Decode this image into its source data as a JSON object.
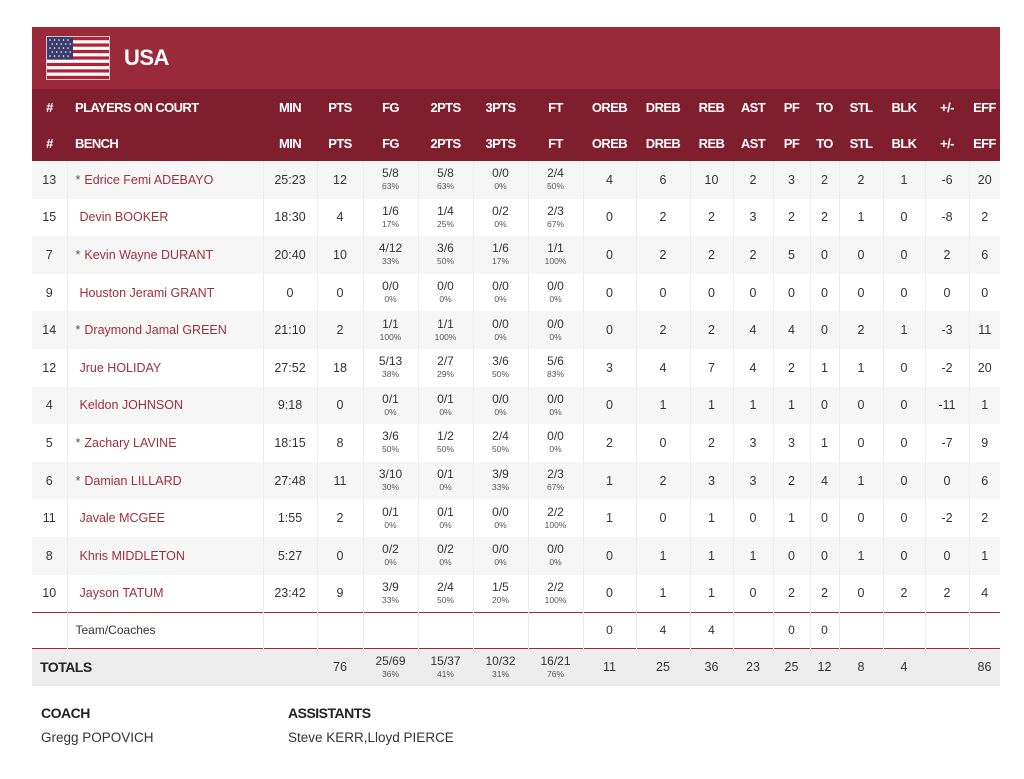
{
  "team": {
    "name": "USA"
  },
  "header_row1": {
    "num": "#",
    "players": "PLAYERS ON COURT",
    "min": "MIN",
    "pts": "PTS",
    "fg": "FG",
    "p2": "2PTS",
    "p3": "3PTS",
    "ft": "FT",
    "oreb": "OREB",
    "dreb": "DREB",
    "reb": "REB",
    "ast": "AST",
    "pf": "PF",
    "to": "TO",
    "stl": "STL",
    "blk": "BLK",
    "pm": "+/-",
    "eff": "EFF"
  },
  "header_row2": {
    "num": "#",
    "players": "BENCH",
    "min": "MIN",
    "pts": "PTS",
    "fg": "FG",
    "p2": "2PTS",
    "p3": "3PTS",
    "ft": "FT",
    "oreb": "OREB",
    "dreb": "DREB",
    "reb": "REB",
    "ast": "AST",
    "pf": "PF",
    "to": "TO",
    "stl": "STL",
    "blk": "BLK",
    "pm": "+/-",
    "eff": "EFF"
  },
  "players": [
    {
      "num": "13",
      "star": "*",
      "name": "Edrice Femi ADEBAYO",
      "min": "25:23",
      "pts": "12",
      "fg": "5/8",
      "fg_pct": "63%",
      "p2": "5/8",
      "p2_pct": "63%",
      "p3": "0/0",
      "p3_pct": "0%",
      "ft": "2/4",
      "ft_pct": "50%",
      "oreb": "4",
      "dreb": "6",
      "reb": "10",
      "ast": "2",
      "pf": "3",
      "to": "2",
      "stl": "2",
      "blk": "1",
      "pm": "-6",
      "eff": "20"
    },
    {
      "num": "15",
      "star": "",
      "name": "Devin BOOKER",
      "min": "18:30",
      "pts": "4",
      "fg": "1/6",
      "fg_pct": "17%",
      "p2": "1/4",
      "p2_pct": "25%",
      "p3": "0/2",
      "p3_pct": "0%",
      "ft": "2/3",
      "ft_pct": "67%",
      "oreb": "0",
      "dreb": "2",
      "reb": "2",
      "ast": "3",
      "pf": "2",
      "to": "2",
      "stl": "1",
      "blk": "0",
      "pm": "-8",
      "eff": "2"
    },
    {
      "num": "7",
      "star": "*",
      "name": "Kevin Wayne DURANT",
      "min": "20:40",
      "pts": "10",
      "fg": "4/12",
      "fg_pct": "33%",
      "p2": "3/6",
      "p2_pct": "50%",
      "p3": "1/6",
      "p3_pct": "17%",
      "ft": "1/1",
      "ft_pct": "100%",
      "oreb": "0",
      "dreb": "2",
      "reb": "2",
      "ast": "2",
      "pf": "5",
      "to": "0",
      "stl": "0",
      "blk": "0",
      "pm": "2",
      "eff": "6"
    },
    {
      "num": "9",
      "star": "",
      "name": "Houston Jerami GRANT",
      "min": "0",
      "pts": "0",
      "fg": "0/0",
      "fg_pct": "0%",
      "p2": "0/0",
      "p2_pct": "0%",
      "p3": "0/0",
      "p3_pct": "0%",
      "ft": "0/0",
      "ft_pct": "0%",
      "oreb": "0",
      "dreb": "0",
      "reb": "0",
      "ast": "0",
      "pf": "0",
      "to": "0",
      "stl": "0",
      "blk": "0",
      "pm": "0",
      "eff": "0"
    },
    {
      "num": "14",
      "star": "*",
      "name": "Draymond Jamal GREEN",
      "min": "21:10",
      "pts": "2",
      "fg": "1/1",
      "fg_pct": "100%",
      "p2": "1/1",
      "p2_pct": "100%",
      "p3": "0/0",
      "p3_pct": "0%",
      "ft": "0/0",
      "ft_pct": "0%",
      "oreb": "0",
      "dreb": "2",
      "reb": "2",
      "ast": "4",
      "pf": "4",
      "to": "0",
      "stl": "2",
      "blk": "1",
      "pm": "-3",
      "eff": "11"
    },
    {
      "num": "12",
      "star": "",
      "name": "Jrue HOLIDAY",
      "min": "27:52",
      "pts": "18",
      "fg": "5/13",
      "fg_pct": "38%",
      "p2": "2/7",
      "p2_pct": "29%",
      "p3": "3/6",
      "p3_pct": "50%",
      "ft": "5/6",
      "ft_pct": "83%",
      "oreb": "3",
      "dreb": "4",
      "reb": "7",
      "ast": "4",
      "pf": "2",
      "to": "1",
      "stl": "1",
      "blk": "0",
      "pm": "-2",
      "eff": "20"
    },
    {
      "num": "4",
      "star": "",
      "name": "Keldon JOHNSON",
      "min": "9:18",
      "pts": "0",
      "fg": "0/1",
      "fg_pct": "0%",
      "p2": "0/1",
      "p2_pct": "0%",
      "p3": "0/0",
      "p3_pct": "0%",
      "ft": "0/0",
      "ft_pct": "0%",
      "oreb": "0",
      "dreb": "1",
      "reb": "1",
      "ast": "1",
      "pf": "1",
      "to": "0",
      "stl": "0",
      "blk": "0",
      "pm": "-11",
      "eff": "1"
    },
    {
      "num": "5",
      "star": "*",
      "name": "Zachary LAVINE",
      "min": "18:15",
      "pts": "8",
      "fg": "3/6",
      "fg_pct": "50%",
      "p2": "1/2",
      "p2_pct": "50%",
      "p3": "2/4",
      "p3_pct": "50%",
      "ft": "0/0",
      "ft_pct": "0%",
      "oreb": "2",
      "dreb": "0",
      "reb": "2",
      "ast": "3",
      "pf": "3",
      "to": "1",
      "stl": "0",
      "blk": "0",
      "pm": "-7",
      "eff": "9"
    },
    {
      "num": "6",
      "star": "*",
      "name": "Damian LILLARD",
      "min": "27:48",
      "pts": "11",
      "fg": "3/10",
      "fg_pct": "30%",
      "p2": "0/1",
      "p2_pct": "0%",
      "p3": "3/9",
      "p3_pct": "33%",
      "ft": "2/3",
      "ft_pct": "67%",
      "oreb": "1",
      "dreb": "2",
      "reb": "3",
      "ast": "3",
      "pf": "2",
      "to": "4",
      "stl": "1",
      "blk": "0",
      "pm": "0",
      "eff": "6"
    },
    {
      "num": "11",
      "star": "",
      "name": "Javale MCGEE",
      "min": "1:55",
      "pts": "2",
      "fg": "0/1",
      "fg_pct": "0%",
      "p2": "0/1",
      "p2_pct": "0%",
      "p3": "0/0",
      "p3_pct": "0%",
      "ft": "2/2",
      "ft_pct": "100%",
      "oreb": "1",
      "dreb": "0",
      "reb": "1",
      "ast": "0",
      "pf": "1",
      "to": "0",
      "stl": "0",
      "blk": "0",
      "pm": "-2",
      "eff": "2"
    },
    {
      "num": "8",
      "star": "",
      "name": "Khris MIDDLETON",
      "min": "5:27",
      "pts": "0",
      "fg": "0/2",
      "fg_pct": "0%",
      "p2": "0/2",
      "p2_pct": "0%",
      "p3": "0/0",
      "p3_pct": "0%",
      "ft": "0/0",
      "ft_pct": "0%",
      "oreb": "0",
      "dreb": "1",
      "reb": "1",
      "ast": "1",
      "pf": "0",
      "to": "0",
      "stl": "1",
      "blk": "0",
      "pm": "0",
      "eff": "1"
    },
    {
      "num": "10",
      "star": "",
      "name": "Jayson TATUM",
      "min": "23:42",
      "pts": "9",
      "fg": "3/9",
      "fg_pct": "33%",
      "p2": "2/4",
      "p2_pct": "50%",
      "p3": "1/5",
      "p3_pct": "20%",
      "ft": "2/2",
      "ft_pct": "100%",
      "oreb": "0",
      "dreb": "1",
      "reb": "1",
      "ast": "0",
      "pf": "2",
      "to": "2",
      "stl": "0",
      "blk": "2",
      "pm": "2",
      "eff": "4"
    }
  ],
  "team_coaches": {
    "label": "Team/Coaches",
    "oreb": "0",
    "dreb": "4",
    "reb": "4",
    "ast": "",
    "pf": "0",
    "to": "0"
  },
  "totals": {
    "label": "TOTALS",
    "pts": "76",
    "fg": "25/69",
    "fg_pct": "36%",
    "p2": "15/37",
    "p2_pct": "41%",
    "p3": "10/32",
    "p3_pct": "31%",
    "ft": "16/21",
    "ft_pct": "76%",
    "oreb": "11",
    "dreb": "25",
    "reb": "36",
    "ast": "23",
    "pf": "25",
    "to": "12",
    "stl": "8",
    "blk": "4",
    "pm": "",
    "eff": "86"
  },
  "coach": {
    "title": "COACH",
    "name": "Gregg POPOVICH"
  },
  "assistants": {
    "title": "ASSISTANTS",
    "names": "Steve KERR,Lloyd PIERCE"
  },
  "colors": {
    "header_red": "#9a2a39",
    "subheader_red": "#7f1f2d",
    "name_link": "#a02f3d"
  }
}
